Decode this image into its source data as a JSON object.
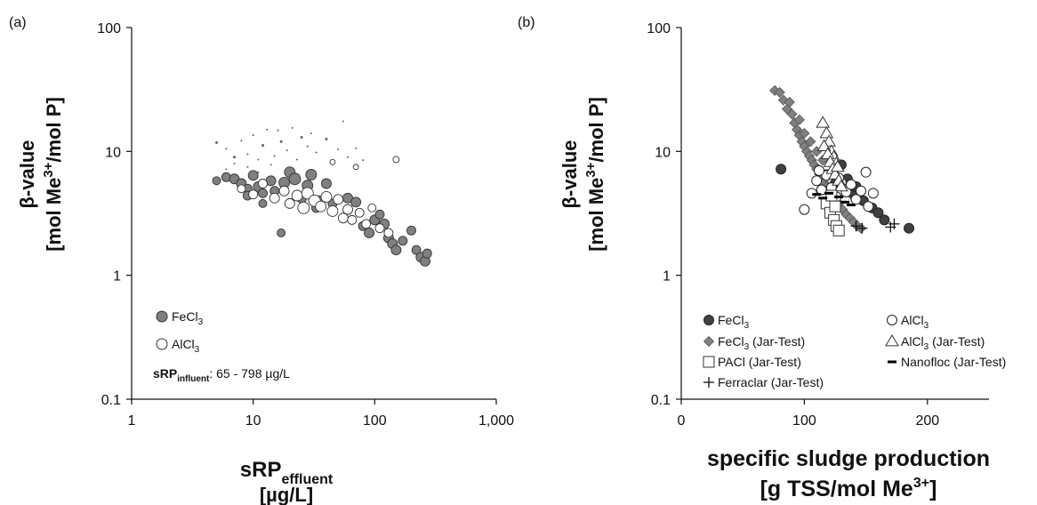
{
  "chart_data": [
    {
      "panel": "(a)",
      "type": "scatter",
      "x_scale": "log",
      "y_scale": "log",
      "xlim": [
        1,
        1000
      ],
      "ylim": [
        0.1,
        100
      ],
      "x_ticks": [
        "1",
        "10",
        "100",
        "1,000"
      ],
      "y_ticks": [
        "0.1",
        "1",
        "10",
        "100"
      ],
      "xlabel_main": "sRP",
      "xlabel_sub": "effluent",
      "xlabel_unit": "[µg/L]",
      "ylabel_line1": "β-value",
      "ylabel_line2_pre": "[mol Me",
      "ylabel_line2_sup": "3+",
      "ylabel_line2_post": "/mol P]",
      "legend": [
        {
          "label_main": "FeCl",
          "label_sub": "3",
          "marker": "circle",
          "fill": "#808080"
        },
        {
          "label_main": "AlCl",
          "label_sub": "3",
          "marker": "circle",
          "fill": "#ffffff"
        }
      ],
      "annotation_main": "sRP",
      "annotation_sub": "influent",
      "annotation_rest": ": 65 - 798 µg/L",
      "series": [
        {
          "name": "FeCl3",
          "marker": "circle",
          "fill": "#808080",
          "points": [
            [
              5,
              5.8,
              7
            ],
            [
              6,
              6.2,
              8
            ],
            [
              7,
              6.0,
              9
            ],
            [
              8,
              5.5,
              9
            ],
            [
              9,
              5.0,
              8
            ],
            [
              10,
              6.4,
              9
            ],
            [
              11,
              5.2,
              9
            ],
            [
              12,
              4.6,
              8
            ],
            [
              14,
              5.8,
              9
            ],
            [
              15,
              4.8,
              8
            ],
            [
              18,
              5.6,
              10
            ],
            [
              20,
              6.8,
              10
            ],
            [
              22,
              6.0,
              11
            ],
            [
              25,
              4.2,
              9
            ],
            [
              28,
              5.3,
              10
            ],
            [
              30,
              6.5,
              10
            ],
            [
              35,
              4.0,
              9
            ],
            [
              40,
              5.5,
              9
            ],
            [
              45,
              3.8,
              8
            ],
            [
              60,
              4.2,
              9
            ],
            [
              70,
              3.9,
              9
            ],
            [
              80,
              2.5,
              8
            ],
            [
              90,
              2.2,
              9
            ],
            [
              100,
              2.8,
              9
            ],
            [
              120,
              2.6,
              9
            ],
            [
              130,
              2.0,
              9
            ],
            [
              140,
              1.8,
              9
            ],
            [
              150,
              1.6,
              9
            ],
            [
              170,
              1.9,
              8
            ],
            [
              200,
              2.3,
              8
            ],
            [
              220,
              1.6,
              8
            ],
            [
              240,
              1.4,
              9
            ],
            [
              260,
              1.3,
              9
            ],
            [
              270,
              1.5,
              8
            ],
            [
              17,
              2.2,
              7
            ],
            [
              12,
              3.8,
              7
            ],
            [
              9,
              4.4,
              8
            ],
            [
              33,
              3.5,
              8
            ],
            [
              55,
              2.9,
              8
            ],
            [
              110,
              3.1,
              8
            ]
          ]
        },
        {
          "name": "AlCl3",
          "marker": "circle",
          "fill": "#ffffff",
          "points": [
            [
              8,
              5.0,
              7
            ],
            [
              10,
              4.5,
              8
            ],
            [
              12,
              5.5,
              8
            ],
            [
              15,
              4.2,
              9
            ],
            [
              18,
              4.8,
              9
            ],
            [
              20,
              3.8,
              9
            ],
            [
              23,
              4.4,
              10
            ],
            [
              26,
              3.5,
              11
            ],
            [
              28,
              4.6,
              11
            ],
            [
              32,
              4.0,
              11
            ],
            [
              36,
              3.6,
              10
            ],
            [
              40,
              4.3,
              10
            ],
            [
              45,
              3.3,
              10
            ],
            [
              50,
              4.1,
              9
            ],
            [
              55,
              2.9,
              9
            ],
            [
              60,
              3.4,
              9
            ],
            [
              65,
              2.8,
              8
            ],
            [
              75,
              3.2,
              8
            ],
            [
              85,
              2.6,
              8
            ],
            [
              95,
              3.5,
              7
            ],
            [
              110,
              2.4,
              8
            ],
            [
              130,
              2.2,
              8
            ],
            [
              150,
              8.6,
              5
            ],
            [
              70,
              7.5,
              4
            ],
            [
              45,
              8.2,
              4
            ]
          ]
        },
        {
          "name": "",
          "marker": "dot",
          "fill": "#606060",
          "points": [
            [
              5,
              11.8,
              3
            ],
            [
              6,
              10.5,
              2
            ],
            [
              7,
              9.0,
              3
            ],
            [
              8,
              12.2,
              2
            ],
            [
              9,
              9.5,
              2
            ],
            [
              10,
              13.5,
              2
            ],
            [
              11,
              8.6,
              2
            ],
            [
              12,
              11.2,
              3
            ],
            [
              13,
              15.0,
              2
            ],
            [
              15,
              9.2,
              2
            ],
            [
              16,
              14.8,
              2
            ],
            [
              17,
              12.0,
              3
            ],
            [
              19,
              10.2,
              2
            ],
            [
              21,
              15.5,
              2
            ],
            [
              23,
              8.6,
              2
            ],
            [
              25,
              13.0,
              3
            ],
            [
              28,
              11.0,
              2
            ],
            [
              30,
              14.0,
              2
            ],
            [
              33,
              9.8,
              2
            ],
            [
              40,
              12.6,
              3
            ],
            [
              50,
              10.4,
              2
            ],
            [
              55,
              17.5,
              2
            ],
            [
              60,
              9.0,
              2
            ],
            [
              70,
              10.6,
              2
            ],
            [
              80,
              8.5,
              2
            ],
            [
              6,
              7.2,
              2
            ],
            [
              7,
              8.0,
              2
            ],
            [
              9,
              7.5,
              2
            ],
            [
              11,
              6.8,
              2
            ],
            [
              14,
              7.8,
              2
            ]
          ]
        }
      ]
    },
    {
      "panel": "(b)",
      "type": "scatter",
      "x_scale": "linear",
      "y_scale": "log",
      "xlim": [
        0,
        250
      ],
      "ylim": [
        0.1,
        100
      ],
      "x_ticks": [
        "0",
        "100",
        "200"
      ],
      "x_tick_values": [
        0,
        100,
        200
      ],
      "y_ticks": [
        "0.1",
        "1",
        "10",
        "100"
      ],
      "xlabel_line1": "specific sludge production",
      "xlabel_line2_pre": "[g TSS/mol Me",
      "xlabel_line2_sup": "3+",
      "xlabel_line2_post": "]",
      "ylabel_line1": "β-value",
      "ylabel_line2_pre": "[mol Me",
      "ylabel_line2_sup": "3+",
      "ylabel_line2_post": "/mol P]",
      "legend": [
        {
          "label_main": "FeCl",
          "label_sub": "3",
          "label_rest": "",
          "marker": "circle",
          "fill": "#404040"
        },
        {
          "label_main": "FeCl",
          "label_sub": "3",
          "label_rest": " (Jar-Test)",
          "marker": "diamond",
          "fill": "#808080"
        },
        {
          "label_main": "PACl (Jar-Test)",
          "label_sub": "",
          "label_rest": "",
          "marker": "square",
          "fill": "#ffffff"
        },
        {
          "label_main": "Ferraclar (Jar-Test)",
          "label_sub": "",
          "label_rest": "",
          "marker": "plus",
          "fill": "#000000"
        },
        {
          "label_main": "AlCl",
          "label_sub": "3",
          "label_rest": "",
          "marker": "circle",
          "fill": "#ffffff"
        },
        {
          "label_main": "AlCl",
          "label_sub": "3",
          "label_rest": " (Jar-Test)",
          "marker": "triangle",
          "fill": "#ffffff"
        },
        {
          "label_main": "Nanofloc (Jar-Test)",
          "label_sub": "",
          "label_rest": "",
          "marker": "dash",
          "fill": "#000000"
        }
      ],
      "series": [
        {
          "name": "FeCl3",
          "marker": "circle",
          "fill": "#404040",
          "points": [
            [
              81,
              7.2
            ],
            [
              118,
              6.5
            ],
            [
              130,
              7.8
            ],
            [
              135,
              6.0
            ],
            [
              140,
              4.5
            ],
            [
              142,
              5.2
            ],
            [
              148,
              4.0
            ],
            [
              155,
              3.5
            ],
            [
              160,
              3.2
            ],
            [
              165,
              2.8
            ],
            [
              185,
              2.4
            ],
            [
              125,
              5.5
            ]
          ]
        },
        {
          "name": "FeCl3 (Jar-Test)",
          "marker": "diamond",
          "fill": "#808080",
          "points": [
            [
              76,
              31
            ],
            [
              80,
              30
            ],
            [
              83,
              26
            ],
            [
              86,
              22
            ],
            [
              88,
              25
            ],
            [
              90,
              20
            ],
            [
              92,
              17
            ],
            [
              94,
              15
            ],
            [
              96,
              13.5
            ],
            [
              98,
              12
            ],
            [
              100,
              11
            ],
            [
              102,
              10
            ],
            [
              104,
              9.2
            ],
            [
              106,
              8.5
            ],
            [
              108,
              7.8
            ],
            [
              110,
              7.2
            ],
            [
              112,
              6.6
            ],
            [
              114,
              6.1
            ],
            [
              116,
              5.6
            ],
            [
              118,
              5.2
            ],
            [
              120,
              4.8
            ],
            [
              122,
              4.5
            ],
            [
              125,
              4.1
            ],
            [
              128,
              3.8
            ],
            [
              131,
              3.4
            ],
            [
              134,
              3.1
            ],
            [
              137,
              2.9
            ],
            [
              140,
              2.7
            ],
            [
              143,
              2.5
            ],
            [
              146,
              2.4
            ],
            [
              96,
              18
            ],
            [
              100,
              14
            ],
            [
              105,
              12
            ],
            [
              110,
              10
            ],
            [
              115,
              8.5
            ]
          ]
        },
        {
          "name": "AlCl3",
          "marker": "circle",
          "fill": "#ffffff",
          "points": [
            [
              100,
              3.4
            ],
            [
              106,
              4.6
            ],
            [
              110,
              5.8
            ],
            [
              114,
              4.9
            ],
            [
              118,
              6.4
            ],
            [
              120,
              3.8
            ],
            [
              122,
              5.1
            ],
            [
              126,
              4.3
            ],
            [
              130,
              5.6
            ],
            [
              134,
              4.7
            ],
            [
              138,
              5.4
            ],
            [
              142,
              4.1
            ],
            [
              146,
              4.8
            ],
            [
              150,
              6.8
            ],
            [
              152,
              3.6
            ],
            [
              156,
              4.6
            ],
            [
              112,
              7.0
            ],
            [
              128,
              6.1
            ]
          ]
        },
        {
          "name": "AlCl3 (Jar-Test)",
          "marker": "triangle",
          "fill": "#ffffff",
          "points": [
            [
              115,
              17
            ],
            [
              118,
              14
            ],
            [
              120,
              12
            ],
            [
              122,
              10
            ],
            [
              124,
              9
            ],
            [
              126,
              8
            ],
            [
              116,
              11
            ],
            [
              119,
              9.5
            ],
            [
              121,
              8.2
            ],
            [
              123,
              7.2
            ],
            [
              125,
              6.5
            ],
            [
              128,
              5.8
            ],
            [
              130,
              5.2
            ],
            [
              127,
              7.5
            ]
          ]
        },
        {
          "name": "PACl (Jar-Test)",
          "marker": "square",
          "fill": "#ffffff",
          "points": [
            [
              118,
              3.8
            ],
            [
              121,
              3.2
            ],
            [
              124,
              2.8
            ],
            [
              126,
              2.5
            ],
            [
              128,
              2.3
            ],
            [
              122,
              4.4
            ],
            [
              125,
              3.6
            ]
          ]
        },
        {
          "name": "Nanofloc (Jar-Test)",
          "marker": "dash",
          "fill": "#000000",
          "points": [
            [
              110,
              4.5
            ],
            [
              115,
              4.2
            ],
            [
              120,
              4.6
            ],
            [
              128,
              4.3
            ],
            [
              133,
              3.9
            ],
            [
              138,
              3.7
            ]
          ]
        },
        {
          "name": "Ferraclar (Jar-Test)",
          "marker": "plus",
          "fill": "#000000",
          "points": [
            [
              142,
              2.5
            ],
            [
              147,
              2.4
            ],
            [
              170,
              2.45
            ],
            [
              173,
              2.6
            ]
          ]
        }
      ]
    }
  ]
}
